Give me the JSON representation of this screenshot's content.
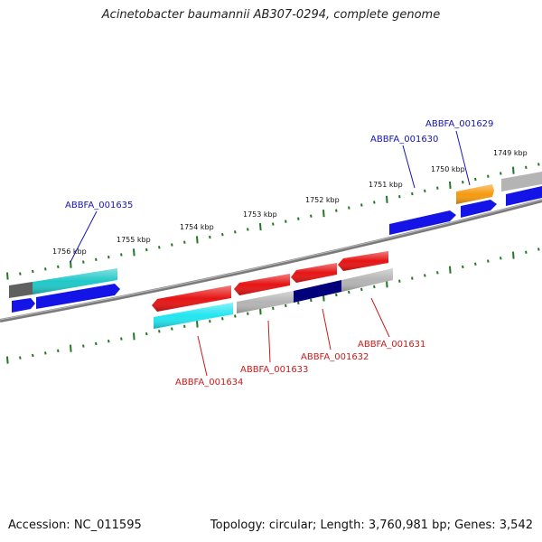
{
  "title": "Acinetobacter baumannii AB307-0294, complete genome",
  "footer": {
    "accession": "Accession: NC_011595",
    "summary": "Topology: circular; Length: 3,760,981 bp; Genes: 3,542"
  },
  "colors": {
    "backbone": "#7a7a7a",
    "tick": "#1f7a1f",
    "label_forward": "#1414b4",
    "label_reverse": "#cc1a1a",
    "gene_blue": "#1414e6",
    "gene_cyan": "#20c8c8",
    "gene_cyan_bright": "#22e6f0",
    "gene_red": "#e61414",
    "gene_gray": "#b4b4b4",
    "gene_darkgray": "#606060",
    "gene_navy": "#00007a",
    "gene_orange": "#f59a10"
  },
  "ticks": [
    {
      "label": "1749 kbp"
    },
    {
      "label": "1750 kbp"
    },
    {
      "label": "1751 kbp"
    },
    {
      "label": "1752 kbp"
    },
    {
      "label": "1753 kbp"
    },
    {
      "label": "1754 kbp"
    },
    {
      "label": "1755 kbp"
    },
    {
      "label": "1756 kbp"
    }
  ],
  "gene_labels": [
    {
      "name": "ABBFA_001629",
      "strand": "forward"
    },
    {
      "name": "ABBFA_001630",
      "strand": "forward"
    },
    {
      "name": "ABBFA_001635",
      "strand": "forward"
    },
    {
      "name": "ABBFA_001631",
      "strand": "reverse"
    },
    {
      "name": "ABBFA_001632",
      "strand": "reverse"
    },
    {
      "name": "ABBFA_001633",
      "strand": "reverse"
    },
    {
      "name": "ABBFA_001634",
      "strand": "reverse"
    }
  ]
}
